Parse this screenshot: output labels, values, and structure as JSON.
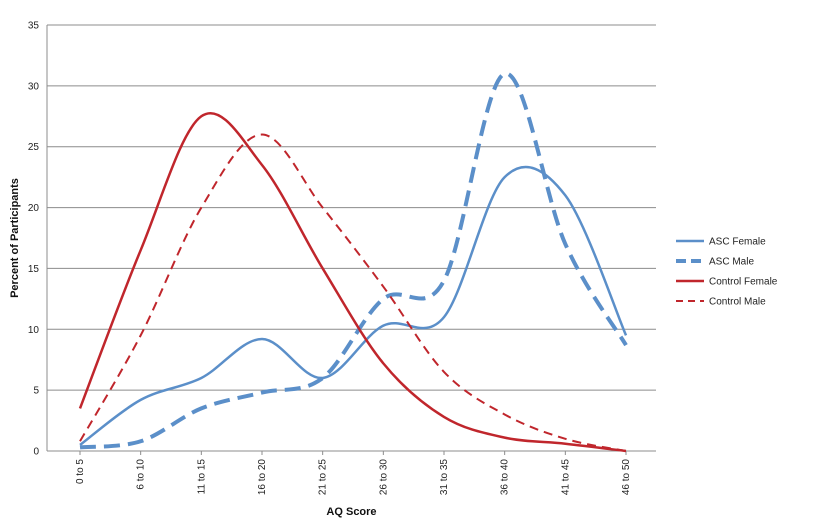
{
  "chart_data": {
    "type": "line",
    "title": "",
    "xlabel": "AQ Score",
    "ylabel": "Percent of Participants",
    "ylim": [
      0,
      35
    ],
    "yticks": [
      0,
      5,
      10,
      15,
      20,
      25,
      30,
      35
    ],
    "categories": [
      "0 to 5",
      "6 to 10",
      "11 to 15",
      "16 to 20",
      "21 to 25",
      "26 to 30",
      "31 to 35",
      "36 to 40",
      "41 to 45",
      "46 to 50"
    ],
    "grid": "horizontal",
    "legend_position": "right",
    "series": [
      {
        "name": "ASC Female",
        "color": "#5b8fc9",
        "dash": "solid",
        "values": [
          0.5,
          4.2,
          6.0,
          9.2,
          6.0,
          10.3,
          11.0,
          22.5,
          21.0,
          9.5
        ]
      },
      {
        "name": "ASC Male",
        "color": "#5b8fc9",
        "dash": "long-dash",
        "values": [
          0.3,
          0.8,
          3.5,
          4.8,
          6.0,
          12.5,
          14.0,
          31.0,
          17.0,
          8.7
        ]
      },
      {
        "name": "Control Female",
        "color": "#c0262c",
        "dash": "solid",
        "values": [
          3.5,
          16.5,
          27.5,
          23.5,
          15.0,
          7.2,
          2.8,
          1.1,
          0.6,
          0.0
        ]
      },
      {
        "name": "Control Male",
        "color": "#c0262c",
        "dash": "short-dash",
        "values": [
          0.8,
          9.5,
          20.0,
          26.0,
          20.0,
          13.5,
          6.5,
          3.0,
          1.0,
          0.0
        ]
      }
    ]
  }
}
